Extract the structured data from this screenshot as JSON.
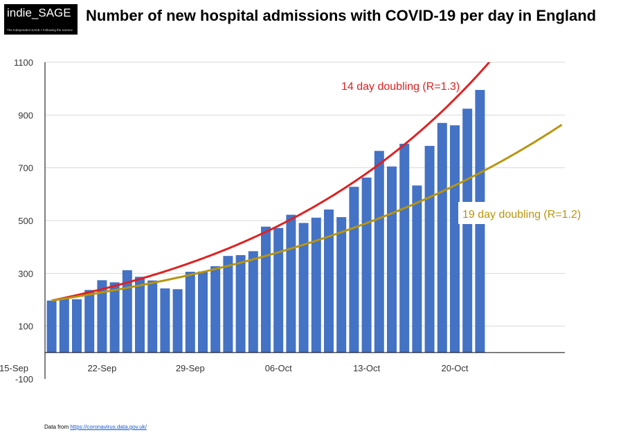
{
  "logo": {
    "main": "indie_SAGE",
    "tagline": "The Independent SAGE • Following the science"
  },
  "footer": {
    "prefix": "Data from",
    "url": "https://coronavirus.data.gov.uk/"
  },
  "colors": {
    "bars": "#4472C4",
    "red_curve": "#e02020",
    "gold_curve": "#b8950f",
    "grid": "#d9d9d9"
  },
  "chart_data": {
    "type": "bar",
    "title": "Number of new hospital admissions with COVID-19 per day in England",
    "xlabel": "",
    "ylabel": "",
    "ylim": [
      -100,
      1100
    ],
    "y_ticks": [
      {
        "value": 1100,
        "label": "1100"
      },
      {
        "value": 900,
        "label": "900"
      },
      {
        "value": 700,
        "label": "700"
      },
      {
        "value": 500,
        "label": "500"
      },
      {
        "value": 300,
        "label": "300"
      },
      {
        "value": 100,
        "label": "100"
      },
      {
        "value": -100,
        "label": "-100"
      }
    ],
    "x_range": [
      15,
      44
    ],
    "x_ticks": [
      {
        "day": 15,
        "label": "15-Sep"
      },
      {
        "day": 22,
        "label": "22-Sep"
      },
      {
        "day": 29,
        "label": "29-Sep"
      },
      {
        "day": 36,
        "label": "06-Oct"
      },
      {
        "day": 43,
        "label": "13-Oct"
      },
      {
        "day": 50,
        "label": "20-Oct"
      }
    ],
    "x_start_day": 18,
    "values": [
      197,
      204,
      202,
      237,
      274,
      266,
      312,
      287,
      273,
      243,
      240,
      306,
      307,
      327,
      366,
      369,
      384,
      477,
      472,
      522,
      491,
      511,
      542,
      513,
      628,
      663,
      764,
      705,
      791,
      633,
      783,
      870,
      861,
      924,
      995
    ],
    "series": [
      {
        "name": "14 day doubling",
        "label": "14 day doubling (R=1.3)",
        "start_day": 18,
        "start_value": 197,
        "doubling_days": 14,
        "color": "#e02020"
      },
      {
        "name": "19 day doubling",
        "label": "19 day doubling (R=1.2)",
        "start_day": 18,
        "start_value": 197,
        "doubling_days": 19,
        "color": "#b8950f"
      }
    ]
  }
}
